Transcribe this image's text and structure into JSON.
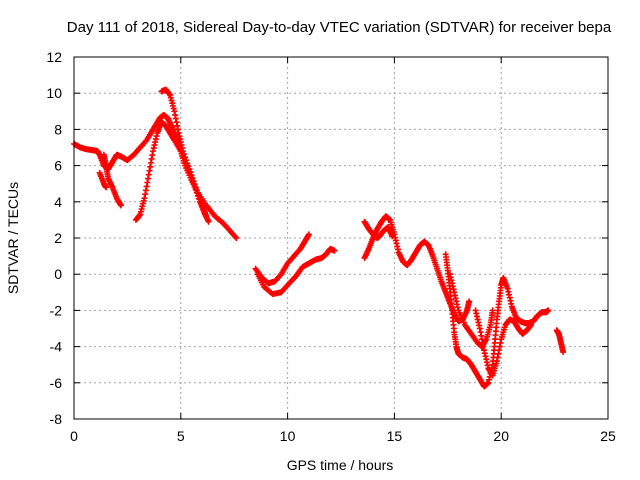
{
  "chart_data": {
    "type": "scatter",
    "title": "Day 111 of 2018, Sidereal Day-to-day VTEC variation (SDTVAR) for receiver bepa",
    "xlabel": "GPS time / hours",
    "ylabel": "SDTVAR / TECUs",
    "xlim": [
      0,
      25
    ],
    "ylim": [
      -8,
      12
    ],
    "x_ticks": [
      0,
      5,
      10,
      15,
      20,
      25
    ],
    "y_ticks": [
      -8,
      -6,
      -4,
      -2,
      0,
      2,
      4,
      6,
      8,
      10,
      12
    ],
    "grid": true,
    "marker": "+",
    "colors": {
      "series": "#ff0000",
      "grid": "#a0a0a0",
      "axis": "#000000"
    },
    "series": [
      {
        "segments": [
          [
            [
              0.0,
              7.2
            ],
            [
              0.3,
              7.0
            ],
            [
              0.6,
              6.9
            ],
            [
              0.9,
              6.85
            ],
            [
              1.1,
              6.8
            ],
            [
              1.2,
              6.6
            ],
            [
              1.4,
              6.0
            ],
            [
              1.6,
              5.8
            ],
            [
              1.8,
              6.2
            ],
            [
              2.0,
              6.6
            ],
            [
              2.2,
              6.5
            ],
            [
              2.5,
              6.3
            ],
            [
              2.8,
              6.6
            ],
            [
              3.1,
              7.0
            ],
            [
              3.4,
              7.4
            ],
            [
              3.7,
              8.0
            ],
            [
              4.0,
              8.6
            ],
            [
              4.2,
              8.8
            ],
            [
              4.4,
              8.6
            ],
            [
              4.6,
              8.1
            ],
            [
              4.8,
              7.5
            ],
            [
              5.0,
              6.8
            ],
            [
              5.2,
              6.0
            ],
            [
              5.5,
              5.2
            ],
            [
              5.8,
              4.5
            ],
            [
              6.2,
              3.8
            ],
            [
              6.6,
              3.2
            ],
            [
              7.0,
              2.8
            ],
            [
              7.3,
              2.4
            ],
            [
              7.6,
              2.0
            ]
          ],
          [
            [
              1.4,
              6.6
            ],
            [
              1.5,
              6.0
            ],
            [
              1.6,
              5.3
            ],
            [
              1.8,
              4.8
            ],
            [
              2.0,
              4.2
            ],
            [
              2.2,
              3.8
            ]
          ],
          [
            [
              1.2,
              5.6
            ],
            [
              1.4,
              5.0
            ],
            [
              1.5,
              4.8
            ]
          ],
          [
            [
              2.9,
              3.0
            ],
            [
              3.1,
              3.3
            ],
            [
              3.3,
              4.2
            ],
            [
              3.5,
              5.5
            ],
            [
              3.7,
              6.8
            ],
            [
              3.9,
              7.8
            ],
            [
              4.1,
              8.4
            ],
            [
              4.3,
              8.2
            ],
            [
              4.5,
              7.8
            ],
            [
              4.7,
              7.4
            ],
            [
              5.0,
              6.8
            ],
            [
              5.3,
              6.0
            ],
            [
              5.6,
              5.0
            ],
            [
              5.9,
              4.0
            ],
            [
              6.1,
              3.4
            ],
            [
              6.3,
              2.9
            ]
          ],
          [
            [
              4.1,
              10.1
            ],
            [
              4.3,
              10.2
            ],
            [
              4.5,
              9.9
            ],
            [
              4.7,
              9.0
            ],
            [
              4.9,
              7.8
            ],
            [
              5.1,
              6.8
            ],
            [
              5.4,
              5.8
            ],
            [
              5.7,
              4.8
            ],
            [
              6.0,
              3.8
            ],
            [
              6.2,
              3.2
            ]
          ],
          [
            [
              8.5,
              0.3
            ],
            [
              8.8,
              -0.2
            ],
            [
              9.1,
              -0.5
            ],
            [
              9.4,
              -0.4
            ],
            [
              9.7,
              0.0
            ],
            [
              10.0,
              0.6
            ],
            [
              10.3,
              1.0
            ],
            [
              10.6,
              1.4
            ],
            [
              10.8,
              1.8
            ],
            [
              11.0,
              2.2
            ]
          ],
          [
            [
              8.6,
              0.0
            ],
            [
              8.9,
              -0.7
            ],
            [
              9.3,
              -1.1
            ],
            [
              9.7,
              -1.0
            ],
            [
              10.0,
              -0.6
            ],
            [
              10.4,
              -0.1
            ],
            [
              10.7,
              0.4
            ],
            [
              11.0,
              0.6
            ],
            [
              11.3,
              0.8
            ],
            [
              11.6,
              0.9
            ],
            [
              11.8,
              1.1
            ],
            [
              12.0,
              1.4
            ],
            [
              12.2,
              1.3
            ]
          ],
          [
            [
              13.6,
              0.9
            ],
            [
              13.8,
              1.4
            ],
            [
              14.0,
              2.0
            ],
            [
              14.2,
              2.5
            ],
            [
              14.4,
              2.9
            ],
            [
              14.6,
              3.2
            ],
            [
              14.8,
              3.0
            ],
            [
              15.0,
              2.2
            ],
            [
              15.2,
              1.2
            ],
            [
              15.4,
              0.7
            ],
            [
              15.6,
              0.5
            ],
            [
              15.8,
              0.8
            ],
            [
              16.0,
              1.2
            ],
            [
              16.2,
              1.6
            ],
            [
              16.4,
              1.8
            ],
            [
              16.6,
              1.6
            ],
            [
              16.8,
              1.0
            ],
            [
              17.0,
              0.3
            ],
            [
              17.2,
              -0.4
            ],
            [
              17.4,
              -1.0
            ],
            [
              17.6,
              -1.6
            ],
            [
              17.8,
              -2.2
            ],
            [
              18.0,
              -2.6
            ],
            [
              18.2,
              -2.5
            ],
            [
              18.4,
              -2.0
            ],
            [
              18.5,
              -1.5
            ]
          ],
          [
            [
              13.6,
              2.9
            ],
            [
              13.8,
              2.5
            ],
            [
              14.0,
              2.2
            ],
            [
              14.2,
              2.0
            ],
            [
              14.3,
              2.1
            ],
            [
              14.5,
              2.4
            ],
            [
              14.7,
              2.6
            ],
            [
              14.9,
              2.1
            ]
          ],
          [
            [
              17.4,
              1.1
            ],
            [
              17.5,
              0.2
            ],
            [
              17.6,
              -0.8
            ],
            [
              17.7,
              -2.0
            ],
            [
              17.8,
              -3.2
            ],
            [
              17.9,
              -4.0
            ],
            [
              18.0,
              -4.4
            ],
            [
              18.2,
              -4.6
            ],
            [
              18.4,
              -4.7
            ],
            [
              18.6,
              -5.0
            ],
            [
              18.8,
              -5.4
            ],
            [
              19.0,
              -5.8
            ],
            [
              19.2,
              -6.2
            ],
            [
              19.4,
              -6.0
            ],
            [
              19.6,
              -5.0
            ],
            [
              19.7,
              -3.8
            ],
            [
              19.8,
              -2.5
            ],
            [
              19.9,
              -1.5
            ],
            [
              20.0,
              -0.6
            ],
            [
              20.1,
              -0.2
            ],
            [
              20.3,
              -0.8
            ],
            [
              20.5,
              -1.8
            ],
            [
              20.7,
              -2.4
            ],
            [
              20.9,
              -2.6
            ],
            [
              21.1,
              -2.7
            ],
            [
              21.3,
              -2.7
            ],
            [
              21.5,
              -2.6
            ],
            [
              21.7,
              -2.3
            ],
            [
              21.9,
              -2.1
            ],
            [
              22.1,
              -2.1
            ],
            [
              22.2,
              -2.0
            ]
          ],
          [
            [
              17.6,
              0.0
            ],
            [
              17.8,
              -1.0
            ],
            [
              18.0,
              -2.0
            ],
            [
              18.3,
              -2.8
            ],
            [
              18.6,
              -3.3
            ],
            [
              18.9,
              -3.8
            ],
            [
              19.1,
              -4.0
            ],
            [
              19.3,
              -3.6
            ],
            [
              19.5,
              -2.8
            ],
            [
              19.6,
              -2.0
            ]
          ],
          [
            [
              18.8,
              -2.0
            ],
            [
              19.0,
              -3.0
            ],
            [
              19.2,
              -4.2
            ],
            [
              19.4,
              -5.2
            ],
            [
              19.6,
              -5.6
            ],
            [
              19.8,
              -4.8
            ],
            [
              20.0,
              -3.6
            ],
            [
              20.2,
              -2.8
            ],
            [
              20.4,
              -2.5
            ],
            [
              20.6,
              -2.6
            ],
            [
              20.8,
              -3.0
            ],
            [
              21.0,
              -3.3
            ],
            [
              21.2,
              -3.1
            ],
            [
              21.4,
              -2.8
            ]
          ],
          [
            [
              22.6,
              -3.1
            ],
            [
              22.7,
              -3.3
            ],
            [
              22.8,
              -3.8
            ],
            [
              22.9,
              -4.3
            ]
          ]
        ]
      }
    ]
  }
}
